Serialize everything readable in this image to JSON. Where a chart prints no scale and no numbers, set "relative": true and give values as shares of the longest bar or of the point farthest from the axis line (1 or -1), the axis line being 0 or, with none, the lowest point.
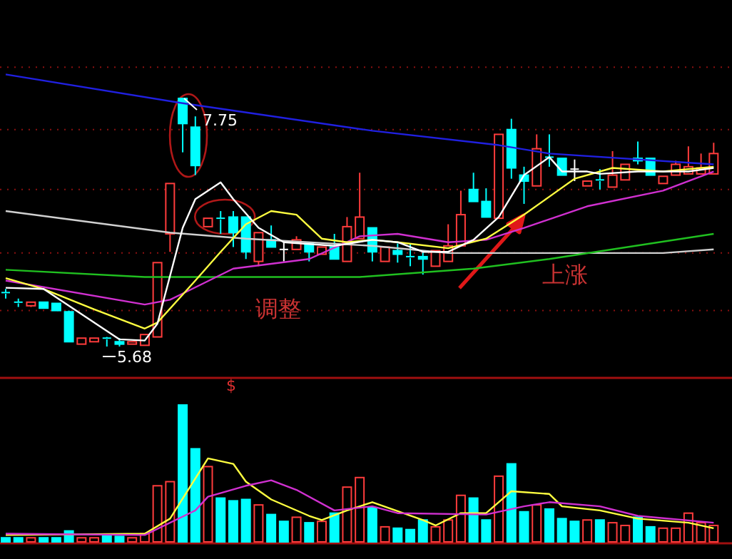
{
  "chart_data": [
    {
      "type": "candlestick",
      "categories": [
        null,
        null,
        null,
        null,
        null,
        null,
        null,
        null,
        null,
        null,
        null,
        null,
        null,
        null,
        null,
        null,
        null,
        null,
        null,
        null,
        null,
        null,
        null,
        null,
        null,
        null,
        null,
        null,
        null,
        null,
        null,
        null,
        null,
        null,
        null,
        null,
        null,
        null,
        null,
        null,
        null,
        null,
        null,
        null,
        null,
        null,
        null,
        null,
        null,
        null,
        null,
        null,
        null,
        null,
        null,
        null,
        null
      ],
      "ohlc": [
        [
          6.13,
          6.16,
          6.08,
          6.12
        ],
        [
          6.05,
          6.08,
          6.01,
          6.04
        ],
        [
          6.02,
          6.05,
          6.01,
          6.05
        ],
        [
          6.05,
          6.05,
          6.0,
          6.0
        ],
        [
          6.04,
          6.04,
          5.98,
          5.98
        ],
        [
          5.97,
          5.98,
          5.72,
          5.72
        ],
        [
          5.7,
          5.75,
          5.7,
          5.75
        ],
        [
          5.72,
          5.75,
          5.72,
          5.75
        ],
        [
          5.75,
          5.76,
          5.68,
          5.74
        ],
        [
          5.72,
          5.75,
          5.68,
          5.7
        ],
        [
          5.7,
          5.72,
          5.7,
          5.72
        ],
        [
          5.69,
          5.78,
          5.69,
          5.78
        ],
        [
          5.76,
          6.38,
          5.76,
          6.38
        ],
        [
          6.62,
          7.04,
          6.47,
          7.04
        ],
        [
          7.75,
          7.75,
          7.3,
          7.54
        ],
        [
          7.51,
          7.6,
          7.11,
          7.19
        ],
        [
          6.68,
          6.75,
          6.68,
          6.75
        ],
        [
          6.75,
          6.81,
          6.62,
          6.74
        ],
        [
          6.76,
          6.81,
          6.51,
          6.63
        ],
        [
          6.76,
          6.76,
          6.41,
          6.47
        ],
        [
          6.39,
          6.63,
          6.35,
          6.63
        ],
        [
          6.57,
          6.69,
          6.51,
          6.51
        ],
        [
          6.49,
          6.55,
          6.39,
          6.49
        ],
        [
          6.49,
          6.6,
          6.49,
          6.57
        ],
        [
          6.54,
          6.54,
          6.39,
          6.47
        ],
        [
          6.45,
          6.51,
          6.45,
          6.51
        ],
        [
          6.51,
          6.62,
          6.41,
          6.41
        ],
        [
          6.39,
          6.76,
          6.39,
          6.68
        ],
        [
          6.58,
          7.13,
          6.58,
          6.76
        ],
        [
          6.67,
          6.67,
          6.39,
          6.47
        ],
        [
          6.39,
          6.51,
          6.39,
          6.51
        ],
        [
          6.48,
          6.54,
          6.38,
          6.45
        ],
        [
          6.43,
          6.54,
          6.35,
          6.42
        ],
        [
          6.43,
          6.48,
          6.28,
          6.41
        ],
        [
          6.35,
          6.48,
          6.35,
          6.48
        ],
        [
          6.39,
          6.7,
          6.39,
          6.52
        ],
        [
          6.52,
          6.98,
          6.52,
          6.78
        ],
        [
          6.99,
          7.13,
          6.89,
          6.89
        ],
        [
          6.89,
          7.0,
          6.76,
          6.76
        ],
        [
          6.75,
          7.45,
          6.75,
          7.45
        ],
        [
          7.49,
          7.58,
          7.08,
          7.17
        ],
        [
          7.11,
          7.18,
          6.87,
          7.06
        ],
        [
          7.02,
          7.45,
          7.02,
          7.33
        ],
        [
          7.26,
          7.45,
          7.18,
          7.25
        ],
        [
          7.25,
          7.25,
          7.11,
          7.11
        ],
        [
          7.16,
          7.24,
          7.06,
          7.16
        ],
        [
          7.02,
          7.06,
          7.02,
          7.06
        ],
        [
          7.07,
          7.16,
          6.99,
          7.06
        ],
        [
          7.01,
          7.31,
          7.01,
          7.11
        ],
        [
          7.07,
          7.2,
          7.07,
          7.2
        ],
        [
          7.25,
          7.39,
          7.2,
          7.23
        ],
        [
          7.25,
          7.25,
          7.11,
          7.11
        ],
        [
          7.04,
          7.1,
          7.04,
          7.1
        ],
        [
          7.11,
          7.23,
          7.11,
          7.2
        ],
        [
          7.12,
          7.35,
          7.12,
          7.18
        ],
        [
          7.12,
          7.29,
          7.12,
          7.17
        ],
        [
          7.12,
          7.38,
          7.12,
          7.29
        ]
      ],
      "series": [
        {
          "type": "line",
          "color": "#2020e0",
          "values": [
            7.95,
            null,
            null,
            null,
            null,
            null,
            null,
            null,
            null,
            null,
            null,
            null,
            null,
            null,
            7.71,
            null,
            null,
            null,
            null,
            null,
            null,
            null,
            null,
            null,
            null,
            null,
            null,
            null,
            null,
            7.48,
            null,
            null,
            null,
            null,
            null,
            null,
            null,
            null,
            null,
            7.36,
            null,
            null,
            null,
            7.29,
            null,
            null,
            null,
            null,
            null,
            null,
            null,
            null,
            null,
            null,
            null,
            null,
            7.2
          ]
        },
        {
          "type": "line",
          "color": "#d0d0d0",
          "values": [
            6.81,
            null,
            null,
            null,
            null,
            null,
            null,
            null,
            null,
            null,
            null,
            null,
            null,
            6.63,
            null,
            null,
            null,
            null,
            null,
            6.58,
            null,
            null,
            null,
            null,
            null,
            null,
            null,
            null,
            null,
            6.52,
            null,
            null,
            null,
            null,
            null,
            6.46,
            null,
            null,
            null,
            null,
            null,
            null,
            null,
            null,
            null,
            null,
            null,
            null,
            null,
            null,
            null,
            null,
            6.46,
            null,
            null,
            null,
            6.49
          ]
        },
        {
          "type": "line",
          "color": "#20c020",
          "values": [
            6.32,
            null,
            null,
            null,
            null,
            null,
            null,
            null,
            null,
            null,
            null,
            6.26,
            null,
            null,
            null,
            null,
            null,
            null,
            null,
            null,
            null,
            null,
            null,
            null,
            null,
            null,
            null,
            null,
            6.26,
            null,
            null,
            null,
            null,
            null,
            null,
            null,
            null,
            6.33,
            null,
            null,
            null,
            null,
            null,
            6.41,
            null,
            null,
            null,
            null,
            null,
            null,
            null,
            null,
            null,
            null,
            null,
            null,
            6.62
          ]
        },
        {
          "type": "line",
          "color": "#d030d0",
          "values": [
            6.23,
            null,
            null,
            null,
            null,
            null,
            null,
            null,
            null,
            null,
            null,
            6.03,
            null,
            6.07,
            null,
            null,
            null,
            null,
            6.33,
            null,
            null,
            null,
            null,
            null,
            6.41,
            null,
            null,
            null,
            6.6,
            null,
            null,
            6.62,
            null,
            null,
            null,
            6.55,
            null,
            null,
            6.57,
            null,
            null,
            6.67,
            null,
            null,
            null,
            null,
            6.85,
            null,
            null,
            null,
            null,
            null,
            6.98,
            null,
            null,
            null,
            7.14
          ]
        },
        {
          "type": "line",
          "color": "#ffff40",
          "values": [
            6.25,
            null,
            null,
            6.16,
            null,
            null,
            null,
            5.99,
            null,
            null,
            null,
            5.83,
            5.88,
            null,
            null,
            6.23,
            null,
            6.47,
            null,
            6.7,
            null,
            6.81,
            null,
            6.78,
            null,
            6.58,
            null,
            6.55,
            null,
            6.57,
            null,
            6.55,
            null,
            null,
            null,
            6.5,
            null,
            null,
            6.58,
            null,
            null,
            6.78,
            null,
            6.93,
            null,
            7.08,
            null,
            null,
            7.17,
            null,
            null,
            null,
            7.14,
            null,
            null,
            null,
            7.18
          ]
        },
        {
          "type": "line",
          "color": "#ffffff",
          "values": [
            6.17,
            null,
            null,
            6.16,
            null,
            null,
            null,
            null,
            null,
            5.74,
            null,
            5.73,
            5.87,
            null,
            6.67,
            6.91,
            null,
            7.05,
            6.91,
            null,
            6.67,
            null,
            6.55,
            null,
            null,
            null,
            6.52,
            null,
            null,
            6.57,
            null,
            6.55,
            null,
            6.47,
            null,
            6.47,
            null,
            6.57,
            null,
            6.76,
            null,
            7.11,
            null,
            7.26,
            7.14,
            null,
            7.14,
            7.12,
            null,
            null,
            7.14,
            null,
            null,
            null,
            7.14,
            null,
            7.17
          ]
        }
      ],
      "yticks": [
        {
          "value": 8.01,
          "label": null
        },
        {
          "value": 7.49,
          "label": null
        },
        {
          "value": 6.99,
          "label": null
        },
        {
          "value": 6.46,
          "label": null
        },
        {
          "value": 5.98,
          "label": null
        }
      ],
      "grid": "y",
      "tick_labels": false,
      "annotations": [
        "调整",
        "上涨",
        "7.75",
        "5.68"
      ]
    },
    {
      "type": "bar",
      "relative": true,
      "categories": [
        null,
        null,
        null,
        null,
        null,
        null,
        null,
        null,
        null,
        null,
        null,
        null,
        null,
        null,
        null,
        null,
        null,
        null,
        null,
        null,
        null,
        null,
        null,
        null,
        null,
        null,
        null,
        null,
        null,
        null,
        null,
        null,
        null,
        null,
        null,
        null,
        null,
        null,
        null,
        null,
        null,
        null,
        null,
        null,
        null,
        null,
        null,
        null,
        null,
        null,
        null,
        null,
        null,
        null,
        null,
        null,
        null
      ],
      "series": [
        {
          "type": "bar",
          "values": [
            0.03,
            0.03,
            0.03,
            0.03,
            0.03,
            0.08,
            0.03,
            0.03,
            0.05,
            0.04,
            0.03,
            0.06,
            0.41,
            0.44,
            1,
            0.68,
            0.55,
            0.32,
            0.3,
            0.31,
            0.27,
            0.2,
            0.15,
            0.18,
            0.14,
            0.15,
            0.21,
            0.4,
            0.47,
            0.25,
            0.11,
            0.1,
            0.09,
            0.16,
            0.11,
            0.16,
            0.34,
            0.32,
            0.16,
            0.48,
            0.57,
            0.22,
            0.27,
            0.24,
            0.17,
            0.15,
            0.16,
            0.16,
            0.14,
            0.12,
            0.18,
            0.11,
            0.1,
            0.1,
            0.21,
            0.14,
            0.12
          ],
          "colors": [
            "#00ffff",
            "#00ffff",
            "#ff3c3c",
            "#00ffff",
            "#00ffff",
            "#00ffff",
            "#ff3c3c",
            "#ff3c3c",
            "#00ffff",
            "#00ffff",
            "#ff3c3c",
            "#ff3c3c",
            "#ff3c3c",
            "#ff3c3c",
            "#00ffff",
            "#00ffff",
            "#ff3c3c",
            "#00ffff",
            "#00ffff",
            "#00ffff",
            "#ff3c3c",
            "#00ffff",
            "#00ffff",
            "#ff3c3c",
            "#00ffff",
            "#ff3c3c",
            "#00ffff",
            "#ff3c3c",
            "#ff3c3c",
            "#00ffff",
            "#ff3c3c",
            "#00ffff",
            "#00ffff",
            "#00ffff",
            "#ff3c3c",
            "#ff3c3c",
            "#ff3c3c",
            "#00ffff",
            "#00ffff",
            "#ff3c3c",
            "#00ffff",
            "#00ffff",
            "#ff3c3c",
            "#00ffff",
            "#00ffff",
            "#00ffff",
            "#ff3c3c",
            "#00ffff",
            "#ff3c3c",
            "#ff3c3c",
            "#00ffff",
            "#00ffff",
            "#ff3c3c",
            "#ff3c3c",
            "#ff3c3c",
            "#ff3c3c",
            "#ff3c3c"
          ]
        },
        {
          "type": "line",
          "color": "#ffff40",
          "values": [
            0.05,
            null,
            null,
            null,
            null,
            null,
            null,
            null,
            null,
            null,
            null,
            0.06,
            null,
            0.17,
            null,
            null,
            0.61,
            null,
            0.57,
            0.44,
            null,
            0.31,
            null,
            null,
            0.19,
            0.16,
            null,
            0.23,
            null,
            0.29,
            null,
            null,
            null,
            0.16,
            0.12,
            null,
            0.21,
            null,
            0.21,
            null,
            0.37,
            null,
            null,
            0.35,
            0.26,
            null,
            null,
            0.23,
            null,
            null,
            0.17,
            null,
            null,
            null,
            0.14,
            null,
            0.1
          ]
        },
        {
          "type": "line",
          "color": "#d030d0",
          "values": [
            0.06,
            null,
            null,
            null,
            null,
            null,
            null,
            null,
            null,
            null,
            null,
            0.05,
            null,
            null,
            null,
            0.23,
            0.33,
            null,
            null,
            0.41,
            null,
            0.45,
            null,
            0.38,
            null,
            null,
            0.23,
            null,
            null,
            0.26,
            null,
            0.21,
            null,
            null,
            null,
            null,
            null,
            null,
            0.2,
            null,
            null,
            0.26,
            null,
            0.29,
            null,
            null,
            null,
            0.26,
            null,
            null,
            0.19,
            null,
            null,
            null,
            null,
            null,
            0.14
          ]
        }
      ],
      "annotations": [
        "$"
      ]
    }
  ]
}
